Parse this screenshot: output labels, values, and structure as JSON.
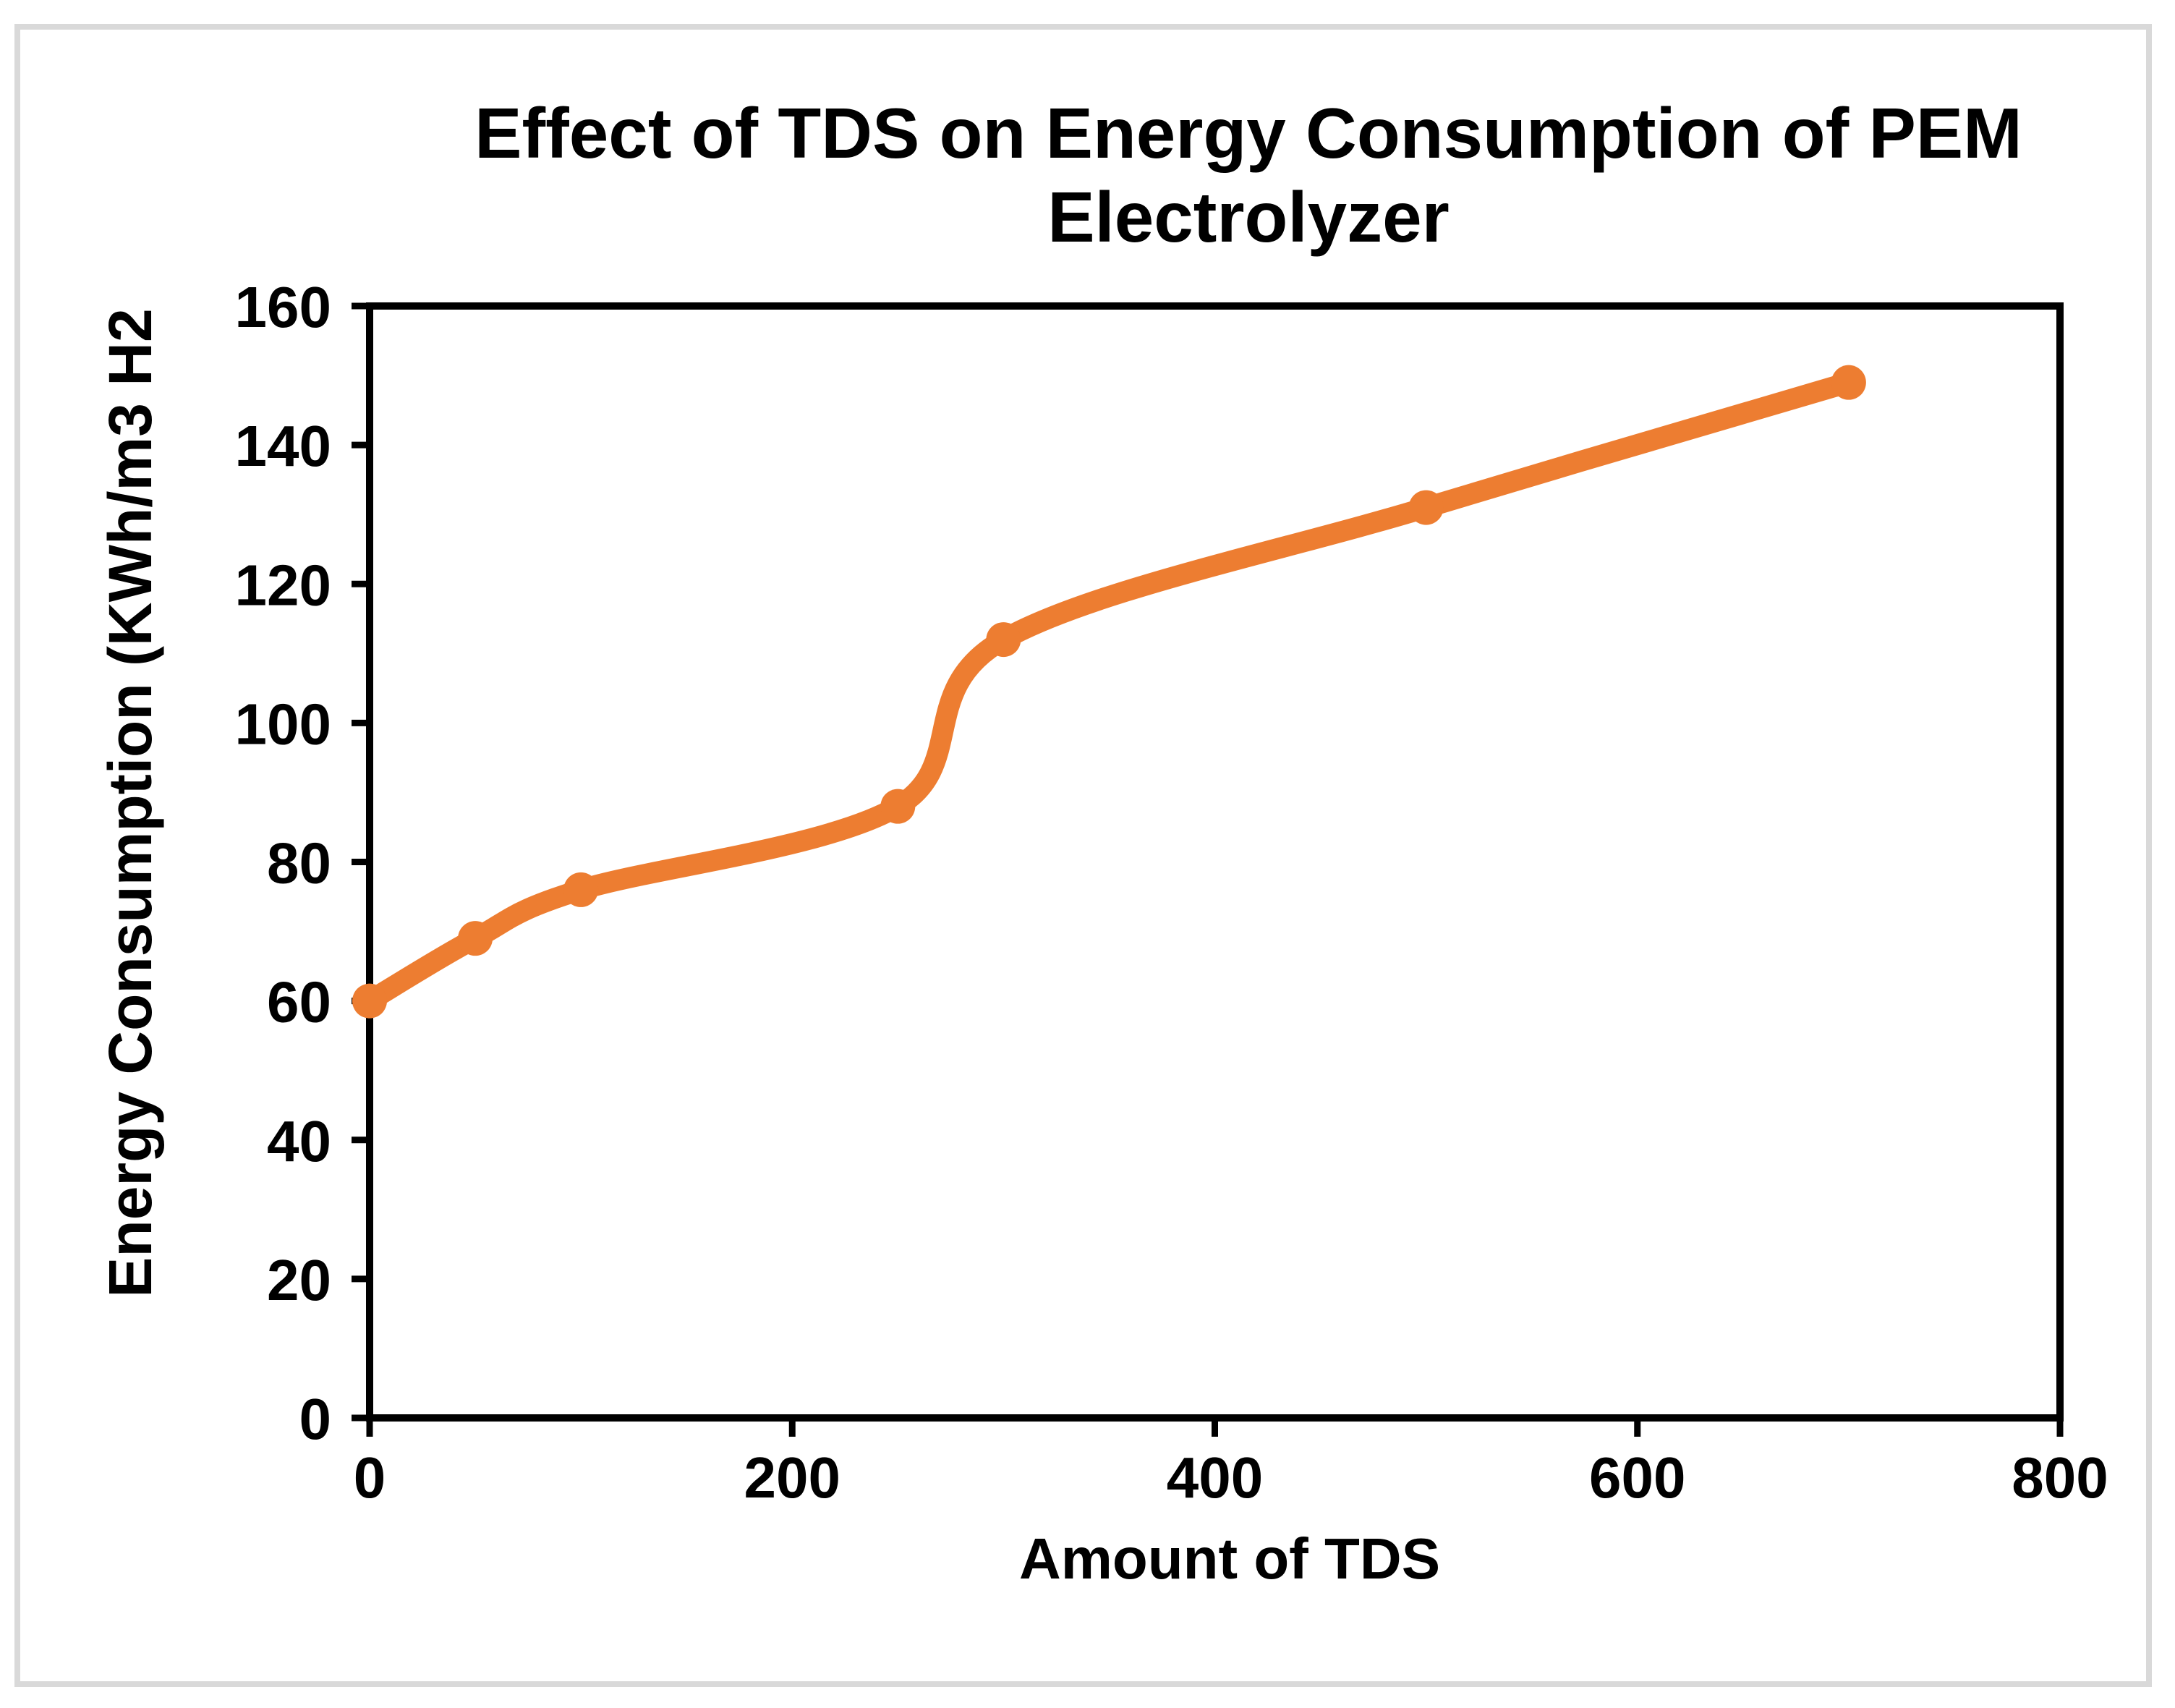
{
  "chart_data": {
    "type": "line",
    "title": "Effect of TDS on Energy Consumption of PEM Electrolyzer",
    "xlabel": "Amount of TDS",
    "ylabel": "Energy Consumption (KWh/m3 H2",
    "series": [
      {
        "name": "Energy Consumption",
        "x": [
          0,
          50,
          100,
          250,
          300,
          500,
          700
        ],
        "y": [
          60,
          69,
          76,
          88,
          112,
          131,
          149
        ]
      }
    ],
    "xlim": [
      0,
      800
    ],
    "ylim": [
      0,
      160
    ],
    "x_ticks": [
      0,
      200,
      400,
      600,
      800
    ],
    "y_ticks": [
      0,
      20,
      40,
      60,
      80,
      100,
      120,
      140,
      160
    ],
    "grid": false,
    "legend": "none",
    "line_style": "smooth",
    "marker": "circle",
    "colors": {
      "line": "#ED7D31",
      "axis": "#000000",
      "text": "#000000",
      "outer_frame": "#D9D9D9",
      "background": "#FFFFFF"
    }
  }
}
